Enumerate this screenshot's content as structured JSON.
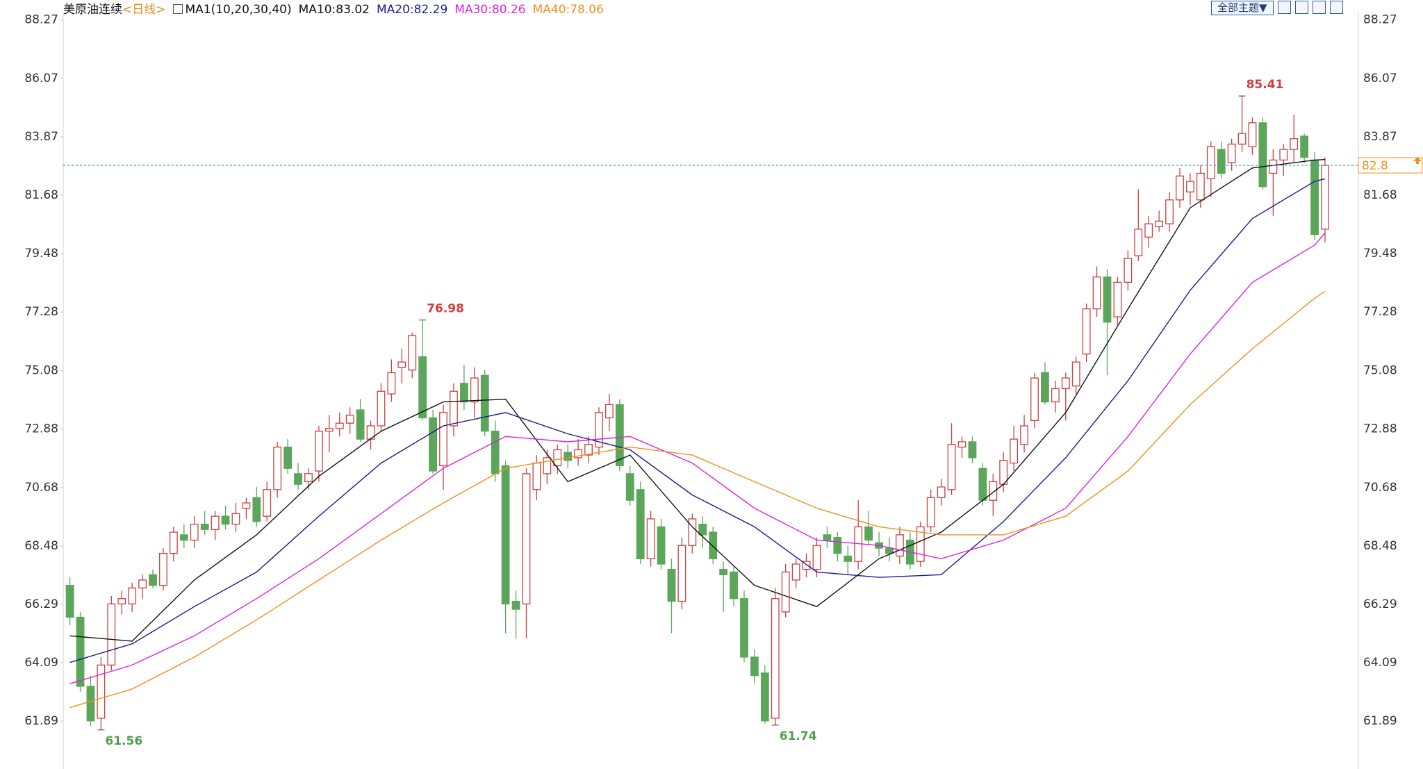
{
  "chart_data": {
    "type": "candlestick",
    "title": "美原油连续",
    "period": "<日线>",
    "indicator": "MA1(10,20,30,40)",
    "toolbar": "全部主题▼",
    "up_color": "#c9413f",
    "down_color": "#5ba65b",
    "last_price_line": true,
    "ylim": [
      60.09,
      88.55
    ],
    "yticks": [
      88.27,
      86.07,
      83.87,
      81.68,
      79.48,
      77.28,
      75.08,
      72.88,
      70.68,
      68.48,
      66.29,
      64.09,
      61.89
    ],
    "open": [
      67.0,
      65.8,
      63.2,
      62.0,
      64.0,
      66.3,
      66.3,
      66.9,
      67.4,
      67.0,
      68.2,
      68.9,
      68.7,
      69.3,
      69.1,
      69.6,
      69.3,
      69.9,
      70.3,
      69.6,
      70.6,
      72.2,
      71.2,
      70.9,
      71.3,
      72.8,
      72.9,
      73.1,
      73.6,
      72.5,
      73.0,
      74.2,
      75.2,
      75.1,
      75.6,
      73.3,
      71.5,
      73.0,
      74.6,
      73.9,
      74.9,
      72.8,
      71.5,
      66.4,
      66.3,
      70.6,
      71.2,
      71.5,
      72.0,
      71.8,
      71.9,
      72.2,
      73.3,
      73.8,
      71.2,
      70.6,
      68.0,
      69.2,
      67.6,
      66.4,
      68.5,
      69.3,
      69.0,
      67.6,
      67.5,
      66.5,
      64.3,
      63.7,
      62.0,
      66.0,
      67.2,
      67.6,
      67.6,
      68.9,
      68.8,
      68.1,
      67.9,
      69.2,
      68.6,
      68.4,
      68.1,
      68.7,
      67.9,
      69.2,
      70.3,
      70.6,
      72.2,
      72.4,
      71.4,
      70.2,
      70.8,
      71.6,
      72.3,
      73.2,
      75.0,
      73.9,
      74.4,
      74.5,
      75.7,
      77.4,
      78.6,
      77.1,
      78.4,
      79.4,
      80.1,
      80.5,
      80.6,
      81.5,
      81.8,
      81.5,
      82.3,
      83.4,
      82.9,
      83.6,
      83.5,
      84.4,
      82.5,
      83.0,
      83.4,
      83.9,
      83.0,
      80.4
    ],
    "high": [
      67.3,
      66.0,
      63.6,
      64.3,
      66.6,
      66.8,
      67.1,
      67.4,
      67.6,
      68.4,
      69.2,
      69.3,
      69.6,
      69.8,
      69.8,
      70.0,
      70.1,
      70.3,
      70.7,
      70.9,
      72.4,
      72.5,
      71.6,
      71.4,
      73.0,
      73.4,
      73.5,
      73.7,
      74.0,
      73.2,
      74.6,
      75.5,
      75.9,
      76.5,
      76.98,
      73.6,
      73.8,
      74.6,
      75.3,
      75.2,
      75.1,
      73.2,
      71.7,
      66.8,
      71.4,
      71.9,
      72.1,
      72.3,
      72.3,
      72.5,
      72.6,
      73.7,
      74.2,
      74.0,
      71.5,
      70.9,
      69.8,
      69.5,
      68.0,
      68.8,
      69.7,
      69.6,
      69.2,
      67.9,
      67.7,
      66.8,
      64.6,
      64.0,
      66.9,
      67.8,
      68.0,
      68.2,
      68.8,
      69.2,
      69.0,
      68.5,
      70.2,
      69.8,
      69.0,
      68.8,
      69.2,
      69.0,
      69.4,
      70.6,
      71.0,
      73.1,
      72.6,
      72.6,
      71.6,
      71.2,
      72.0,
      73.0,
      73.4,
      75.0,
      75.4,
      74.7,
      75.0,
      75.6,
      77.6,
      79.0,
      78.9,
      78.6,
      79.6,
      81.9,
      80.9,
      81.1,
      81.8,
      82.7,
      82.5,
      82.8,
      83.7,
      83.7,
      83.8,
      85.41,
      84.6,
      84.6,
      83.4,
      83.6,
      84.7,
      84.0,
      83.3,
      83.1
    ],
    "low": [
      65.5,
      63.0,
      61.7,
      61.56,
      63.8,
      65.9,
      66.0,
      66.5,
      66.9,
      66.8,
      67.9,
      68.4,
      68.4,
      68.9,
      68.7,
      69.1,
      69.0,
      69.5,
      69.2,
      69.4,
      70.3,
      71.2,
      70.6,
      70.6,
      70.9,
      72.0,
      72.6,
      72.7,
      72.4,
      72.1,
      72.8,
      73.9,
      74.6,
      74.8,
      73.2,
      71.2,
      70.6,
      72.6,
      73.6,
      73.3,
      72.6,
      70.9,
      65.2,
      65.0,
      65.0,
      70.2,
      70.8,
      71.2,
      71.4,
      71.5,
      71.6,
      71.9,
      72.8,
      71.3,
      70.0,
      67.8,
      67.7,
      67.6,
      65.2,
      66.1,
      68.2,
      68.4,
      67.8,
      66.0,
      66.2,
      64.1,
      63.3,
      61.8,
      61.74,
      65.8,
      66.9,
      67.3,
      67.3,
      68.4,
      67.9,
      67.4,
      67.6,
      68.5,
      68.1,
      67.9,
      67.8,
      67.6,
      67.7,
      69.0,
      70.0,
      70.4,
      71.8,
      71.6,
      70.0,
      69.6,
      70.5,
      71.3,
      72.0,
      72.9,
      73.8,
      73.5,
      73.2,
      74.2,
      75.4,
      77.1,
      74.9,
      76.8,
      78.1,
      79.2,
      79.7,
      80.3,
      80.3,
      81.2,
      81.3,
      81.2,
      81.6,
      82.3,
      82.6,
      83.3,
      83.2,
      81.9,
      80.9,
      82.4,
      82.9,
      82.9,
      80.0,
      79.9
    ],
    "close": [
      65.8,
      63.2,
      61.9,
      64.0,
      66.3,
      66.5,
      66.9,
      67.2,
      67.0,
      68.2,
      69.0,
      68.7,
      69.3,
      69.1,
      69.6,
      69.3,
      69.7,
      70.1,
      69.4,
      70.6,
      72.2,
      71.4,
      70.8,
      71.2,
      72.8,
      72.9,
      73.1,
      73.4,
      72.5,
      73.0,
      74.3,
      75.0,
      75.4,
      76.4,
      73.3,
      71.3,
      73.5,
      74.3,
      73.9,
      74.8,
      72.8,
      71.2,
      66.3,
      66.1,
      71.2,
      71.6,
      71.8,
      72.1,
      71.7,
      72.1,
      72.3,
      73.5,
      73.8,
      71.5,
      70.2,
      68.0,
      69.5,
      67.8,
      66.4,
      68.5,
      69.5,
      68.9,
      68.0,
      67.4,
      66.5,
      64.3,
      63.6,
      61.9,
      66.5,
      67.5,
      67.8,
      67.9,
      68.5,
      68.7,
      68.2,
      67.9,
      69.2,
      68.7,
      68.4,
      68.2,
      68.9,
      67.8,
      69.2,
      70.3,
      70.7,
      72.3,
      72.4,
      71.8,
      70.2,
      70.9,
      71.7,
      72.5,
      73.0,
      74.8,
      73.9,
      74.4,
      74.8,
      75.4,
      77.4,
      78.6,
      76.9,
      78.4,
      79.3,
      80.4,
      80.6,
      80.7,
      81.5,
      82.4,
      82.2,
      82.5,
      83.5,
      82.5,
      83.6,
      84.0,
      84.4,
      82.0,
      83.0,
      83.4,
      83.8,
      83.1,
      80.2,
      82.8
    ],
    "ma_x": [
      0,
      6,
      12,
      18,
      24,
      30,
      36,
      42,
      48,
      54,
      60,
      66,
      72,
      78,
      84,
      90,
      96,
      102,
      108,
      114,
      120,
      121
    ],
    "series": [
      {
        "name": "MA10:83.02",
        "color": "#111111",
        "values": [
          65.1,
          64.9,
          67.2,
          68.9,
          71.1,
          72.8,
          73.9,
          74.0,
          70.9,
          71.9,
          69.2,
          67.0,
          66.2,
          68.0,
          69.0,
          70.8,
          73.5,
          77.4,
          81.2,
          82.7,
          83.0,
          83.02
        ]
      },
      {
        "name": "MA20:82.29",
        "color": "#1a1a8c",
        "values": [
          64.1,
          64.8,
          66.2,
          67.5,
          69.6,
          71.6,
          73.0,
          73.5,
          72.7,
          72.1,
          70.4,
          69.2,
          67.5,
          67.3,
          67.4,
          69.4,
          71.8,
          74.7,
          78.1,
          80.8,
          82.2,
          82.29
        ]
      },
      {
        "name": "MA30:80.26",
        "color": "#e020e0",
        "values": [
          63.3,
          64.0,
          65.1,
          66.5,
          68.0,
          69.7,
          71.4,
          72.6,
          72.4,
          72.6,
          71.6,
          69.9,
          68.7,
          68.5,
          68.0,
          68.7,
          69.9,
          72.6,
          75.7,
          78.4,
          79.8,
          80.26
        ]
      },
      {
        "name": "MA40:78.06",
        "color": "#f0901a",
        "values": [
          62.4,
          63.1,
          64.3,
          65.7,
          67.2,
          68.7,
          70.1,
          71.4,
          71.8,
          72.2,
          71.9,
          70.9,
          69.9,
          69.2,
          68.9,
          68.9,
          69.6,
          71.3,
          73.8,
          75.9,
          77.8,
          78.06
        ]
      }
    ]
  }
}
